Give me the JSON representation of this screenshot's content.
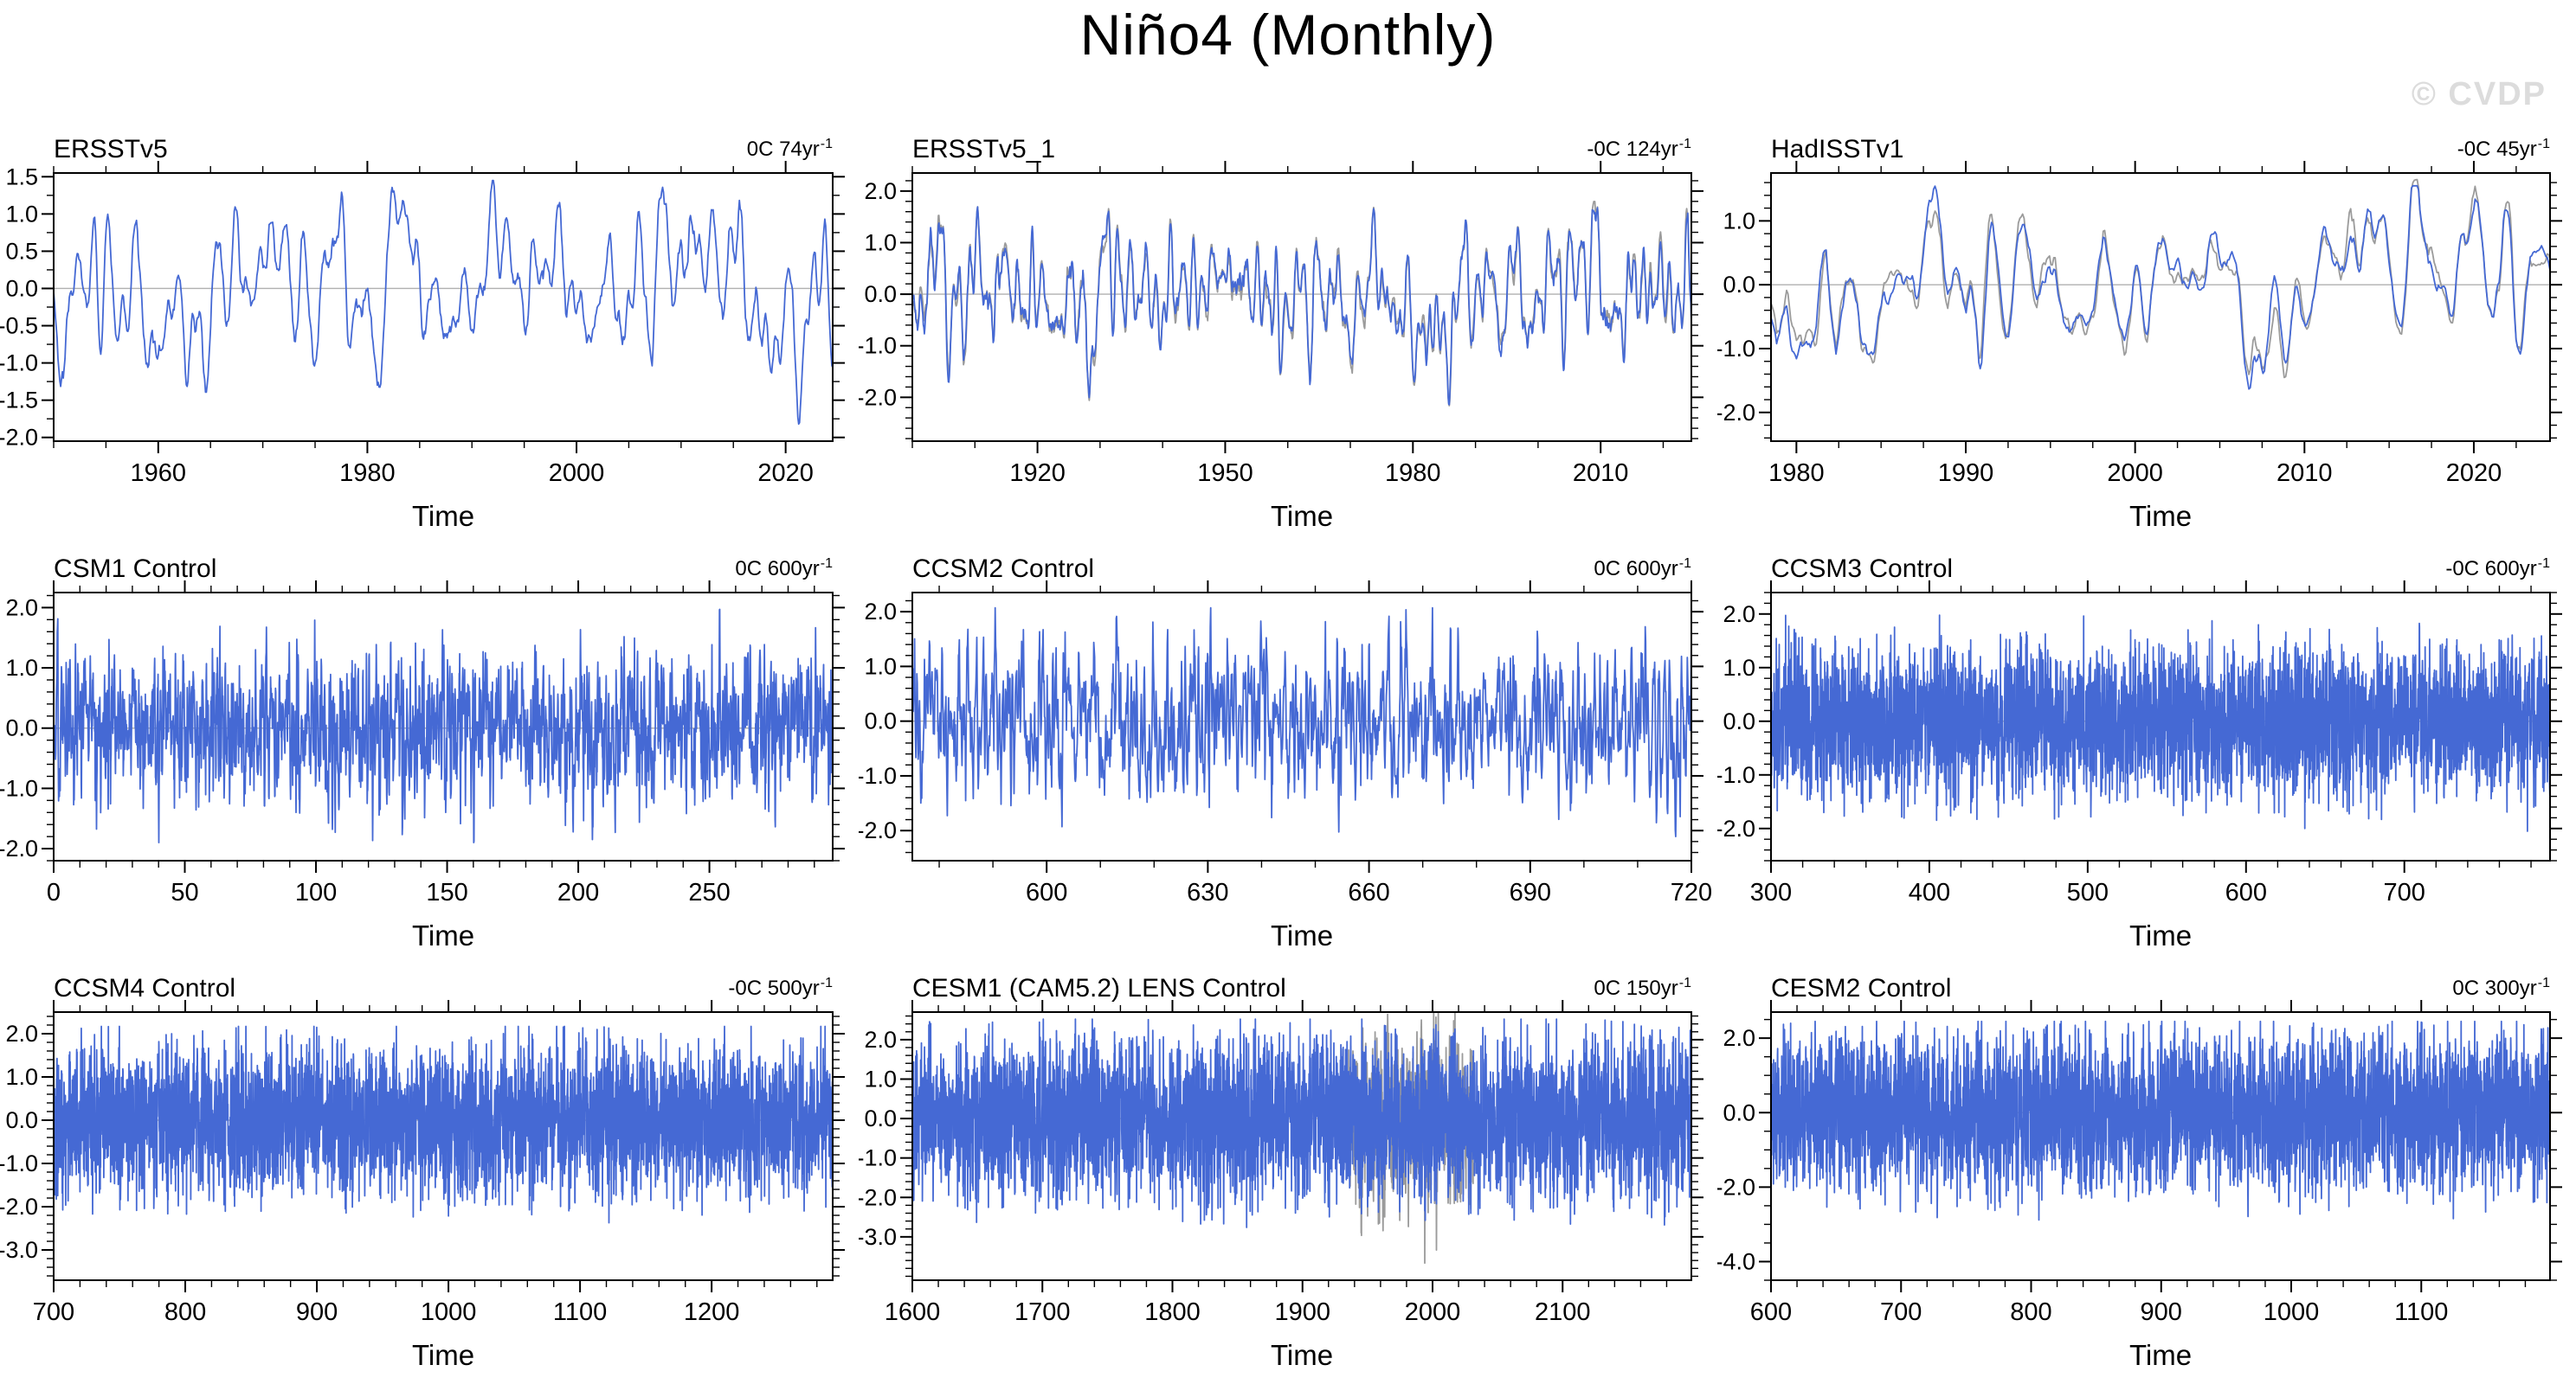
{
  "page": {
    "title": "Niño4 (Monthly)",
    "watermark": "© CVDP"
  },
  "colors": {
    "line": "#4569d4",
    "secondary_line": "#9b9b9b",
    "zero_line": "#b0b0b0",
    "frame": "#000000",
    "text": "#000000",
    "watermark": "#dcdcdc"
  },
  "chart_data": [
    {
      "type": "line",
      "title": "ERSSTv5",
      "trend_label": "0C 74yr",
      "trend_superscript": "-1",
      "xlabel": "Time",
      "grid": false,
      "legend": "none",
      "x_range": [
        1950,
        2024.5
      ],
      "x_tick_values": [
        1960,
        1980,
        2000,
        2020
      ],
      "x_tick_labels": [
        "1960",
        "1980",
        "2000",
        "2020"
      ],
      "x_minor_step": 5,
      "y_lim": [
        -2.05,
        1.55
      ],
      "y_tick_values": [
        1.5,
        1.0,
        0.5,
        0.0,
        -0.5,
        -1.0,
        -1.5,
        -2.0
      ],
      "y_tick_labels": [
        "1.5",
        "1.0",
        "0.5",
        "0.0",
        "-0.5",
        "-1.0",
        "-1.5",
        "-2.0"
      ],
      "y_minor_step": 0.25,
      "zero_line": 0.0,
      "series": [
        {
          "name": "nino4-index",
          "color_key": "line",
          "seed": 101,
          "n": 894,
          "smooth": 7,
          "passes": 2,
          "std": 0.62,
          "clip": [
            -1.82,
            1.45
          ]
        }
      ]
    },
    {
      "type": "line",
      "title": "ERSSTv5_1",
      "trend_label": "-0C 124yr",
      "trend_superscript": "-1",
      "xlabel": "Time",
      "grid": false,
      "legend": "none",
      "x_range": [
        1900,
        2024.5
      ],
      "x_tick_values": [
        1920,
        1950,
        1980,
        2010
      ],
      "x_tick_labels": [
        "1920",
        "1950",
        "1980",
        "2010"
      ],
      "x_minor_step": 10,
      "y_lim": [
        -2.85,
        2.35
      ],
      "y_tick_values": [
        2.0,
        1.0,
        0.0,
        -1.0,
        -2.0
      ],
      "y_tick_labels": [
        "2.0",
        "1.0",
        "0.0",
        "-1.0",
        "-2.0"
      ],
      "y_minor_step": 0.2,
      "zero_line": 0.0,
      "series": [
        {
          "name": "companion",
          "color_key": "secondary_line",
          "base": 1,
          "jitter": 0.1,
          "seed": 202,
          "smooth": 5
        },
        {
          "name": "nino4-index",
          "color_key": "line",
          "seed": 201,
          "n": 1494,
          "smooth": 7,
          "passes": 2,
          "std": 0.68,
          "clip": [
            -2.65,
            2.3
          ]
        }
      ]
    },
    {
      "type": "line",
      "title": "HadISSTv1",
      "trend_label": "-0C 45yr",
      "trend_superscript": "-1",
      "xlabel": "Time",
      "grid": false,
      "legend": "none",
      "x_range": [
        1978.5,
        2024.5
      ],
      "x_tick_values": [
        1980,
        1990,
        2000,
        2010,
        2020
      ],
      "x_tick_labels": [
        "1980",
        "1990",
        "2000",
        "2010",
        "2020"
      ],
      "x_minor_step": 2.5,
      "y_lim": [
        -2.45,
        1.75
      ],
      "y_tick_values": [
        1.0,
        0.0,
        -1.0,
        -2.0
      ],
      "y_tick_labels": [
        "1.0",
        "0.0",
        "-1.0",
        "-2.0"
      ],
      "y_minor_step": 0.2,
      "zero_line": 0.0,
      "series": [
        {
          "name": "companion",
          "color_key": "secondary_line",
          "base": 1,
          "jitter": 0.17,
          "seed": 302,
          "smooth": 5
        },
        {
          "name": "nino4-index",
          "color_key": "line",
          "seed": 301,
          "n": 552,
          "smooth": 7,
          "passes": 2,
          "std": 0.66,
          "clip": [
            -2.05,
            1.55
          ]
        }
      ]
    },
    {
      "type": "line",
      "title": "CSM1 Control",
      "trend_label": "0C 600yr",
      "trend_superscript": "-1",
      "xlabel": "Time",
      "grid": false,
      "legend": "none",
      "x_range": [
        0,
        297
      ],
      "x_tick_values": [
        0,
        50,
        100,
        150,
        200,
        250
      ],
      "x_tick_labels": [
        "0",
        "50",
        "100",
        "150",
        "200",
        "250"
      ],
      "x_minor_step": 10,
      "y_lim": [
        -2.2,
        2.25
      ],
      "y_tick_values": [
        2.0,
        1.0,
        0.0,
        -1.0,
        -2.0
      ],
      "y_tick_labels": [
        "2.0",
        "1.0",
        "0.0",
        "-1.0",
        "-2.0"
      ],
      "y_minor_step": 0.2,
      "zero_line": 0.0,
      "series": [
        {
          "name": "nino4-index",
          "color_key": "line",
          "seed": 401,
          "n": 3000,
          "smooth": 2,
          "passes": 1,
          "std": 0.6,
          "clip": [
            -1.9,
            1.97
          ]
        }
      ]
    },
    {
      "type": "line",
      "title": "CCSM2 Control",
      "trend_label": "0C 600yr",
      "trend_superscript": "-1",
      "xlabel": "Time",
      "grid": false,
      "legend": "none",
      "x_range": [
        575,
        720
      ],
      "x_tick_values": [
        600,
        630,
        660,
        690,
        720
      ],
      "x_tick_labels": [
        "600",
        "630",
        "660",
        "690",
        "720"
      ],
      "x_minor_step": 10,
      "y_lim": [
        -2.55,
        2.35
      ],
      "y_tick_values": [
        2.0,
        1.0,
        0.0,
        -1.0,
        -2.0
      ],
      "y_tick_labels": [
        "2.0",
        "1.0",
        "0.0",
        "-1.0",
        "-2.0"
      ],
      "y_minor_step": 0.2,
      "zero_line": 0.0,
      "series": [
        {
          "name": "nino4-index",
          "color_key": "line",
          "seed": 501,
          "n": 1740,
          "smooth": 2,
          "passes": 1,
          "std": 0.72,
          "clip": [
            -2.35,
            2.07
          ]
        }
      ]
    },
    {
      "type": "line",
      "title": "CCSM3 Control",
      "trend_label": "-0C 600yr",
      "trend_superscript": "-1",
      "xlabel": "Time",
      "grid": false,
      "legend": "none",
      "x_range": [
        300,
        792
      ],
      "x_tick_values": [
        300,
        400,
        500,
        600,
        700
      ],
      "x_tick_labels": [
        "300",
        "400",
        "500",
        "600",
        "700"
      ],
      "x_minor_step": 20,
      "y_lim": [
        -2.6,
        2.4
      ],
      "y_tick_values": [
        2.0,
        1.0,
        0.0,
        -1.0,
        -2.0
      ],
      "y_tick_labels": [
        "2.0",
        "1.0",
        "0.0",
        "-1.0",
        "-2.0"
      ],
      "y_minor_step": 0.2,
      "zero_line": 0.0,
      "series": [
        {
          "name": "nino4-index",
          "color_key": "line",
          "seed": 601,
          "n": 4000,
          "smooth": 1,
          "passes": 0,
          "std": 0.7,
          "clip": [
            -2.42,
            2.12
          ]
        }
      ]
    },
    {
      "type": "line",
      "title": "CCSM4 Control",
      "trend_label": "-0C 500yr",
      "trend_superscript": "-1",
      "xlabel": "Time",
      "grid": false,
      "legend": "none",
      "x_range": [
        700,
        1292
      ],
      "x_tick_values": [
        700,
        800,
        900,
        1000,
        1100,
        1200
      ],
      "x_tick_labels": [
        "700",
        "800",
        "900",
        "1000",
        "1100",
        "1200"
      ],
      "x_minor_step": 20,
      "y_lim": [
        -3.7,
        2.5
      ],
      "y_tick_values": [
        2.0,
        1.0,
        0.0,
        -1.0,
        -2.0,
        -3.0
      ],
      "y_tick_labels": [
        "2.0",
        "1.0",
        "0.0",
        "-1.0",
        "-2.0",
        "-3.0"
      ],
      "y_minor_step": 0.2,
      "zero_line": 0.0,
      "series": [
        {
          "name": "nino4-index",
          "color_key": "line",
          "seed": 701,
          "n": 4200,
          "smooth": 1,
          "passes": 0,
          "std": 0.85,
          "clip": [
            -3.28,
            2.17
          ]
        }
      ]
    },
    {
      "type": "line",
      "title": "CESM1 (CAM5.2) LENS Control",
      "trend_label": "0C 150yr",
      "trend_superscript": "-1",
      "xlabel": "Time",
      "grid": false,
      "legend": "none",
      "x_range": [
        1600,
        2199
      ],
      "x_tick_values": [
        1600,
        1700,
        1800,
        1900,
        2000,
        2100
      ],
      "x_tick_labels": [
        "1600",
        "1700",
        "1800",
        "1900",
        "2000",
        "2100"
      ],
      "x_minor_step": 20,
      "y_lim": [
        -4.1,
        2.7
      ],
      "y_tick_values": [
        2.0,
        1.0,
        0.0,
        -1.0,
        -2.0,
        -3.0
      ],
      "y_tick_labels": [
        "2.0",
        "1.0",
        "0.0",
        "-1.0",
        "-2.0",
        "-3.0"
      ],
      "y_minor_step": 0.2,
      "zero_line": 0.0,
      "series": [
        {
          "name": "companion",
          "color_key": "secondary_line",
          "base": 1,
          "jitter": 0.55,
          "seed": 802,
          "smooth": 3,
          "x_frac": [
            0.56,
            0.72
          ]
        },
        {
          "name": "nino4-index",
          "color_key": "line",
          "seed": 801,
          "n": 4200,
          "smooth": 1,
          "passes": 0,
          "std": 1.02,
          "clip": [
            -3.62,
            2.52
          ]
        }
      ]
    },
    {
      "type": "line",
      "title": "CESM2 Control",
      "trend_label": "0C 300yr",
      "trend_superscript": "-1",
      "xlabel": "Time",
      "grid": false,
      "legend": "none",
      "x_range": [
        600,
        1199
      ],
      "x_tick_values": [
        600,
        700,
        800,
        900,
        1000,
        1100
      ],
      "x_tick_labels": [
        "600",
        "700",
        "800",
        "900",
        "1000",
        "1100"
      ],
      "x_minor_step": 20,
      "y_lim": [
        -4.5,
        2.7
      ],
      "y_tick_values": [
        2.0,
        0.0,
        -2.0,
        -4.0
      ],
      "y_tick_labels": [
        "2.0",
        "0.0",
        "-2.0",
        "-4.0"
      ],
      "y_minor_step": 0.5,
      "zero_line": 0.0,
      "series": [
        {
          "name": "nino4-index",
          "color_key": "line",
          "seed": 901,
          "n": 4200,
          "smooth": 1,
          "passes": 0,
          "std": 1.05,
          "clip": [
            -3.95,
            2.45
          ]
        }
      ]
    }
  ]
}
